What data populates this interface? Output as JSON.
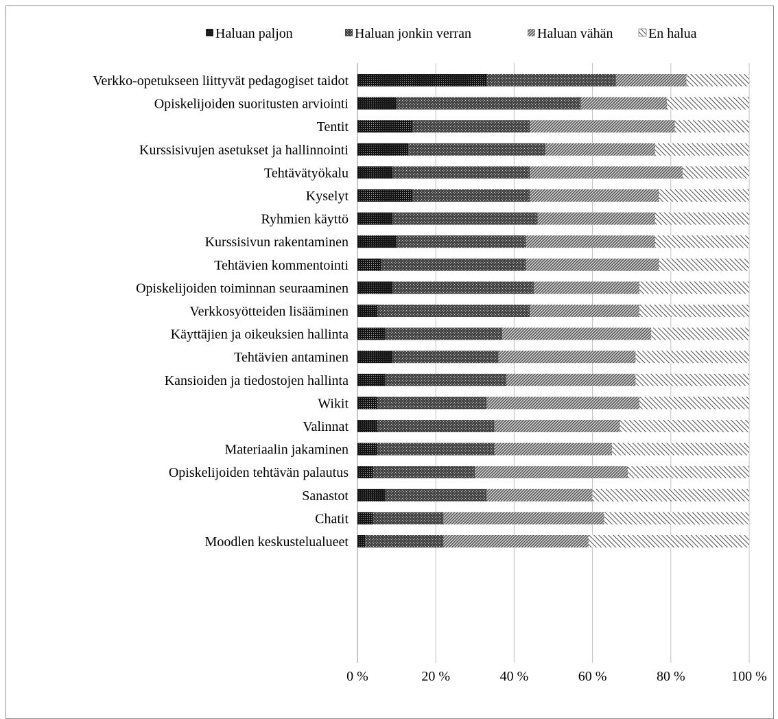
{
  "chart_data": {
    "type": "bar",
    "orientation": "horizontal",
    "stacked": "percent",
    "categories": [
      "Verkko-opetukseen liittyvät pedagogiset taidot",
      "Opiskelijoiden suoritusten arviointi",
      "Tentit ",
      "Kurssisivujen asetukset ja hallinnointi",
      "Tehtävätyökalu",
      "Kyselyt ",
      "Ryhmien käyttö",
      "Kurssisivun rakentaminen ",
      "Tehtävien kommentointi",
      "Opiskelijoiden toiminnan seuraaminen",
      "Verkkosyötteiden lisääminen",
      "Käyttäjien ja oikeuksien hallinta",
      "Tehtävien antaminen ",
      "Kansioiden ja tiedostojen hallinta",
      "Wikit ",
      "Valinnat",
      "Materiaalin jakaminen ",
      "Opiskelijoiden tehtävän palautus",
      "Sanastot",
      "Chatit",
      "Moodlen keskustelualueet"
    ],
    "series": [
      {
        "name": "Haluan paljon",
        "values": [
          33,
          10,
          14,
          13,
          9,
          14,
          9,
          10,
          6,
          9,
          5,
          7,
          9,
          7,
          5,
          5,
          5,
          4,
          7,
          4,
          2
        ]
      },
      {
        "name": "Haluan jonkin verran",
        "values": [
          33,
          47,
          30,
          35,
          35,
          30,
          37,
          33,
          37,
          36,
          39,
          30,
          27,
          31,
          28,
          30,
          30,
          26,
          26,
          18,
          20
        ]
      },
      {
        "name": "Haluan vähän",
        "values": [
          18,
          22,
          37,
          28,
          39,
          33,
          30,
          33,
          34,
          27,
          28,
          38,
          35,
          33,
          39,
          32,
          30,
          39,
          27,
          41,
          37
        ]
      },
      {
        "name": "En halua",
        "values": [
          16,
          21,
          19,
          24,
          17,
          23,
          24,
          24,
          23,
          28,
          28,
          25,
          29,
          29,
          28,
          33,
          35,
          31,
          40,
          37,
          41
        ]
      }
    ],
    "xlim": [
      0,
      100
    ],
    "xticks": [
      "0 %",
      "20 %",
      "40 %",
      "60 %",
      "80 %",
      "100 %"
    ],
    "grid": true,
    "legend_position": "top",
    "colors": {
      "series_fills": [
        "#111111",
        "#3a3a3a",
        "#6e6e6e",
        "#ffffff"
      ],
      "grid": "#bfbfbf",
      "axis": "#8c8c8c",
      "frame": "#8c8c8c"
    }
  }
}
